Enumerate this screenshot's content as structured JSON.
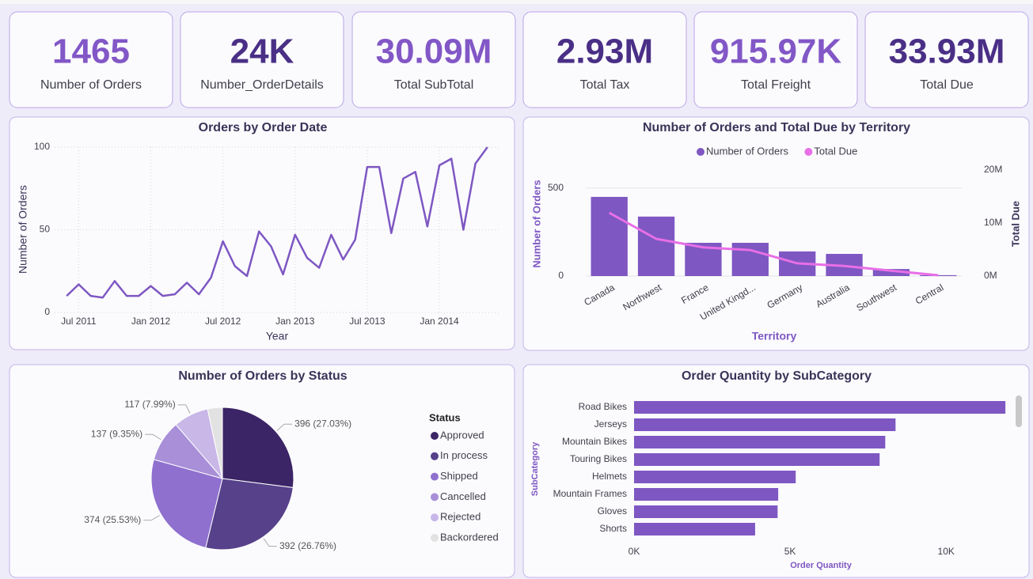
{
  "cards": [
    {
      "value": "1465",
      "label": "Number of Orders",
      "color": "#8257c6"
    },
    {
      "value": "24K",
      "label": "Number_OrderDetails",
      "color": "#4a2f86"
    },
    {
      "value": "30.09M",
      "label": "Total SubTotal",
      "color": "#8257c6"
    },
    {
      "value": "2.93M",
      "label": "Total Tax",
      "color": "#4a2f86"
    },
    {
      "value": "915.97K",
      "label": "Total Freight",
      "color": "#8257c6"
    },
    {
      "value": "33.93M",
      "label": "Total Due",
      "color": "#4a2f86"
    }
  ],
  "chart_data": [
    {
      "type": "line",
      "title": "Orders by Order Date",
      "x_label": "Year",
      "y_label": "Number of Orders",
      "color": "#7e57c2",
      "x": [
        "2011-06",
        "2011-07",
        "2011-08",
        "2011-09",
        "2011-10",
        "2011-11",
        "2011-12",
        "2012-01",
        "2012-02",
        "2012-03",
        "2012-04",
        "2012-05",
        "2012-06",
        "2012-07",
        "2012-08",
        "2012-09",
        "2012-10",
        "2012-11",
        "2012-12",
        "2013-01",
        "2013-02",
        "2013-03",
        "2013-04",
        "2013-05",
        "2013-06",
        "2013-07",
        "2013-08",
        "2013-09",
        "2013-10",
        "2013-11",
        "2013-12",
        "2014-01",
        "2014-02",
        "2014-03",
        "2014-04",
        "2014-05"
      ],
      "values": [
        10,
        17,
        10,
        9,
        19,
        10,
        10,
        16,
        10,
        11,
        18,
        11,
        21,
        43,
        28,
        22,
        49,
        40,
        23,
        47,
        33,
        27,
        47,
        32,
        44,
        88,
        88,
        48,
        81,
        85,
        52,
        89,
        93,
        50,
        90,
        100
      ],
      "xlim": [
        "2011-05",
        "2014-06"
      ],
      "xticks": [
        {
          "value": "2011-07",
          "label": "Jul 2011"
        },
        {
          "value": "2012-01",
          "label": "Jan 2012"
        },
        {
          "value": "2012-07",
          "label": "Jul 2012"
        },
        {
          "value": "2013-01",
          "label": "Jan 2013"
        },
        {
          "value": "2013-07",
          "label": "Jul 2013"
        },
        {
          "value": "2014-01",
          "label": "Jan 2014"
        }
      ],
      "ylim": [
        0,
        100
      ],
      "yticks": [
        0,
        50,
        100
      ],
      "grid": true
    },
    {
      "type": "bar",
      "title": "Number of Orders and Total Due by Territory",
      "x_label": "Territory",
      "y_label": "Number of Orders",
      "y2_label": "Total Due",
      "categories": [
        "Canada",
        "Northwest",
        "France",
        "United Kingd...",
        "Germany",
        "Australia",
        "Southwest",
        "Central"
      ],
      "series": [
        {
          "name": "Number of Orders",
          "color": "#7e57c2",
          "values": [
            450,
            338,
            189,
            189,
            140,
            126,
            40,
            5
          ]
        },
        {
          "name": "Total Due",
          "color": "#e86fe6",
          "axis": "y2",
          "values": [
            11900000,
            7000000,
            5400000,
            4900000,
            2400000,
            1900000,
            1000000,
            150000
          ]
        }
      ],
      "ylim": [
        0,
        625
      ],
      "yticks": [
        0,
        500
      ],
      "y2lim": [
        0,
        20700000
      ],
      "y2ticks": [
        {
          "value": 0,
          "label": "0M"
        },
        {
          "value": 10000000,
          "label": "10M"
        },
        {
          "value": 20000000,
          "label": "20M"
        }
      ],
      "grid": true
    },
    {
      "type": "pie",
      "title": "Number of Orders by Status",
      "legend_title": "Status",
      "categories": [
        "Approved",
        "In process",
        "Shipped",
        "Cancelled",
        "Rejected",
        "Backordered"
      ],
      "values": [
        396,
        392,
        374,
        137,
        117,
        49
      ],
      "value_labels": [
        "396 (27.03%)",
        "392 (26.76%)",
        "374 (25.53%)",
        "137 (9.35%)",
        "117 (7.99%)",
        null
      ],
      "colors": [
        "#3b2566",
        "#56418a",
        "#8f70cf",
        "#a88fd8",
        "#c9b7e8",
        "#e2e2e2"
      ]
    },
    {
      "type": "bar",
      "orientation": "horizontal",
      "title": "Order Quantity by SubCategory",
      "x_label": "Order Quantity",
      "y_label": "SubCategory",
      "color": "#7e57c2",
      "categories": [
        "Road Bikes",
        "Jerseys",
        "Mountain Bikes",
        "Touring Bikes",
        "Helmets",
        "Mountain Frames",
        "Gloves",
        "Shorts"
      ],
      "values": [
        11900,
        8380,
        8050,
        7870,
        5180,
        4620,
        4600,
        3880
      ],
      "xlim": [
        0,
        12100
      ],
      "xticks": [
        {
          "value": 0,
          "label": "0K"
        },
        {
          "value": 5000,
          "label": "5K"
        },
        {
          "value": 10000,
          "label": "10K"
        }
      ],
      "grid": false
    }
  ]
}
